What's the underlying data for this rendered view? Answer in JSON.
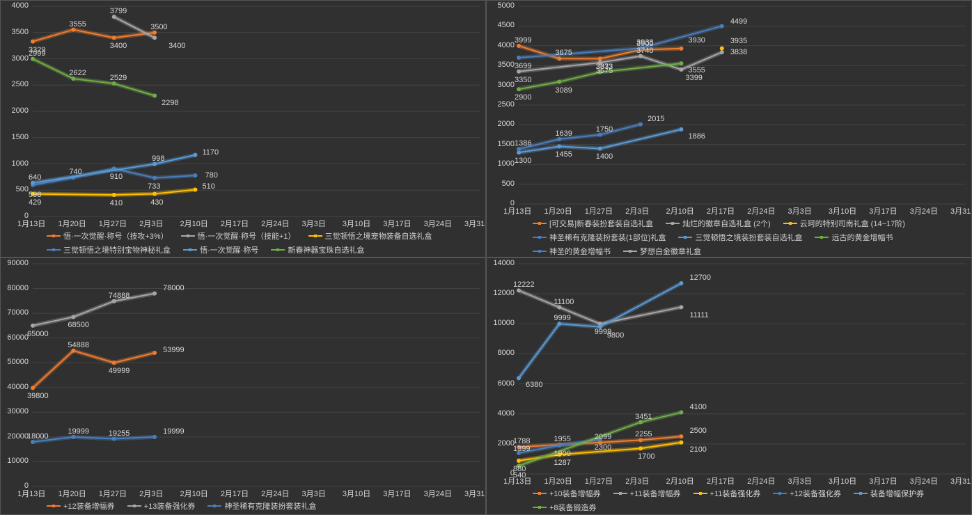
{
  "background_color": "#303030",
  "grid_color": "#444444",
  "tick_color": "#d8d8d8",
  "label_color": "#d8d8d8",
  "font_family": "Microsoft YaHei",
  "tick_fontsize": 11,
  "label_fontsize": 11,
  "legend_fontsize": 11,
  "x_categories": [
    "1月13日",
    "1月20日",
    "1月27日",
    "2月3日",
    "2月10日",
    "2月17日",
    "2月24日",
    "3月3日",
    "3月10日",
    "3月17日",
    "3月24日",
    "3月31日"
  ],
  "series_colors": {
    "orange": "#ed7d31",
    "gray": "#a6a6a6",
    "yellow": "#ffc000",
    "blue": "#4a7ebb",
    "blue2": "#5b9bd5",
    "green": "#70ad47"
  },
  "panels": [
    {
      "id": "tl",
      "type": "line",
      "ylim": [
        0,
        4000
      ],
      "ytick_step": 500,
      "series": [
        {
          "name": "悟·一次觉醒·称号（技攻+3%）",
          "color": "orange",
          "values": [
            3329,
            3555,
            3400,
            3500
          ],
          "label_offsets": [
            [
              -6,
              12
            ],
            [
              -6,
              -8
            ],
            [
              -6,
              12
            ],
            [
              -6,
              -8
            ]
          ]
        },
        {
          "name": "悟·一次觉醒·称号（技能+1）",
          "color": "gray",
          "values": [
            null,
            null,
            3799,
            3400
          ],
          "label_offsets": [
            null,
            null,
            [
              -6,
              -8
            ],
            [
              20,
              12
            ]
          ]
        },
        {
          "name": "三觉顿悟之境宠物装备自选礼盒",
          "color": "yellow",
          "values": [
            429,
            null,
            410,
            430,
            510
          ],
          "label_offsets": [
            [
              -6,
              12
            ],
            null,
            [
              -6,
              12
            ],
            [
              -6,
              12
            ],
            [
              10,
              -4
            ]
          ]
        },
        {
          "name": "三觉顿悟之境特别宝物神秘礼盒",
          "color": "blue",
          "values": [
            598,
            740,
            910,
            733,
            780
          ],
          "label_offsets": [
            [
              -6,
              14
            ],
            [
              -6,
              -8
            ],
            [
              -6,
              12
            ],
            [
              -10,
              12
            ],
            [
              14,
              0
            ]
          ]
        },
        {
          "name": "悟·一次觉醒·称号",
          "color": "blue2",
          "values": [
            640,
            null,
            null,
            998,
            1170
          ],
          "label_offsets": [
            [
              -6,
              -8
            ],
            null,
            null,
            [
              -4,
              -8
            ],
            [
              10,
              -4
            ]
          ]
        },
        {
          "name": "新春神器宝珠自选礼盒",
          "color": "green",
          "values": [
            2999,
            2622,
            2529,
            2298
          ],
          "label_offsets": [
            [
              -6,
              -8
            ],
            [
              -6,
              -8
            ],
            [
              -6,
              -8
            ],
            [
              10,
              10
            ]
          ]
        }
      ]
    },
    {
      "id": "tr",
      "type": "line",
      "ylim": [
        0,
        5000
      ],
      "ytick_step": 500,
      "series": [
        {
          "name": "[可交易]新春装扮套装自选礼盒",
          "color": "orange",
          "values": [
            3999,
            3675,
            3673,
            3900,
            3930
          ],
          "label_offsets": [
            [
              -6,
              -8
            ],
            [
              -6,
              -8
            ],
            [
              -6,
              12
            ],
            [
              -6,
              -8
            ],
            [
              10,
              -12
            ]
          ]
        },
        {
          "name": "灿烂的徽章自选礼盒 (2个)",
          "color": "gray",
          "values": [
            3350,
            null,
            3575,
            3740,
            3399,
            3838
          ],
          "label_offsets": [
            [
              -6,
              12
            ],
            null,
            [
              -6,
              12
            ],
            [
              -6,
              -8
            ],
            [
              6,
              12
            ],
            [
              12,
              0
            ]
          ]
        },
        {
          "name": "云珂的特别司南礼盒 (14~17阶)",
          "color": "yellow",
          "values": [
            null,
            null,
            null,
            null,
            null,
            3935
          ],
          "label_offsets": [
            null,
            null,
            null,
            null,
            null,
            [
              12,
              -10
            ]
          ]
        },
        {
          "name": "神圣稀有克隆装扮套装(1部位)礼盒",
          "color": "blue",
          "values": [
            3699,
            null,
            null,
            3938,
            null,
            4499
          ],
          "label_offsets": [
            [
              -6,
              12
            ],
            null,
            null,
            [
              -6,
              -8
            ],
            null,
            [
              12,
              -6
            ]
          ]
        },
        {
          "name": "三觉顿悟之境装扮套装自选礼盒",
          "color": "blue2",
          "values": [
            1300,
            1455,
            1400,
            null,
            1886
          ],
          "label_offsets": [
            [
              -6,
              12
            ],
            [
              -6,
              12
            ],
            [
              -6,
              12
            ],
            null,
            [
              10,
              10
            ]
          ]
        },
        {
          "name": "远古的黄金增幅书",
          "color": "green",
          "values": [
            2900,
            3089,
            3333,
            null,
            3555
          ],
          "label_offsets": [
            [
              -6,
              12
            ],
            [
              -6,
              12
            ],
            [
              -6,
              -8
            ],
            null,
            [
              10,
              10
            ]
          ]
        },
        {
          "name": "神圣的黄金增幅书",
          "color": "blue",
          "values": [
            1386,
            1639,
            1750,
            2015
          ],
          "label_offsets": [
            [
              -6,
              -8
            ],
            [
              -6,
              -8
            ],
            [
              -6,
              -8
            ],
            [
              10,
              -8
            ]
          ],
          "extra": true
        },
        {
          "name": "梦想白金徽章礼盒",
          "color": "gray",
          "values": [],
          "extra": true
        }
      ]
    },
    {
      "id": "bl",
      "type": "line",
      "ylim": [
        0,
        90000
      ],
      "ytick_step": 10000,
      "series": [
        {
          "name": "+12装备增幅券",
          "color": "orange",
          "values": [
            39800,
            54888,
            49999,
            53999
          ],
          "label_offsets": [
            [
              -8,
              12
            ],
            [
              -8,
              -8
            ],
            [
              -8,
              12
            ],
            [
              12,
              -4
            ]
          ]
        },
        {
          "name": "+13装备强化券",
          "color": "gray",
          "values": [
            65000,
            68500,
            74888,
            78000
          ],
          "label_offsets": [
            [
              -8,
              12
            ],
            [
              -8,
              12
            ],
            [
              -8,
              -8
            ],
            [
              12,
              -8
            ]
          ]
        },
        {
          "name": "神圣稀有克隆装扮套装礼盒",
          "color": "blue",
          "values": [
            18000,
            19999,
            19255,
            19999
          ],
          "label_offsets": [
            [
              -8,
              -8
            ],
            [
              -8,
              -8
            ],
            [
              -8,
              -8
            ],
            [
              12,
              -8
            ]
          ]
        }
      ]
    },
    {
      "id": "br",
      "type": "line",
      "ylim": [
        0,
        14000
      ],
      "ytick_step": 2000,
      "series": [
        {
          "name": "+10装备增幅券",
          "color": "orange",
          "values": [
            1788,
            1955,
            2099,
            2255,
            2500
          ],
          "label_offsets": [
            [
              -8,
              -8
            ],
            [
              -8,
              -8
            ],
            [
              -8,
              -8
            ],
            [
              -8,
              -8
            ],
            [
              12,
              -8
            ]
          ]
        },
        {
          "name": "+11装备增幅券",
          "color": "gray",
          "values": [
            12222,
            11100,
            9999,
            null,
            11111
          ],
          "label_offsets": [
            [
              -8,
              -8
            ],
            [
              -8,
              -8
            ],
            [
              -8,
              12
            ],
            null,
            [
              12,
              12
            ]
          ]
        },
        {
          "name": "+11装备强化券",
          "color": "yellow",
          "values": [
            880,
            1287,
            null,
            1700,
            2100
          ],
          "label_offsets": [
            [
              -8,
              12
            ],
            [
              -8,
              12
            ],
            null,
            [
              -4,
              12
            ],
            [
              12,
              10
            ]
          ]
        },
        {
          "name": "+12装备强化券",
          "color": "blue",
          "values": [
            1399,
            1900,
            2300
          ],
          "label_offsets": [
            [
              -8,
              -6
            ],
            [
              -8,
              12
            ],
            [
              -8,
              12
            ]
          ]
        },
        {
          "name": "装备增幅保护券",
          "color": "blue2",
          "values": [
            6380,
            9999,
            9800,
            null,
            12700
          ],
          "label_offsets": [
            [
              10,
              10
            ],
            [
              -8,
              -8
            ],
            [
              10,
              12
            ],
            null,
            [
              12,
              -8
            ]
          ]
        },
        {
          "name": "+8装备锻造券",
          "color": "green",
          "values": [
            540,
            null,
            null,
            3451,
            4100
          ],
          "label_offsets": [
            [
              -8,
              14
            ],
            null,
            null,
            [
              -8,
              -8
            ],
            [
              12,
              -8
            ]
          ]
        }
      ]
    }
  ]
}
